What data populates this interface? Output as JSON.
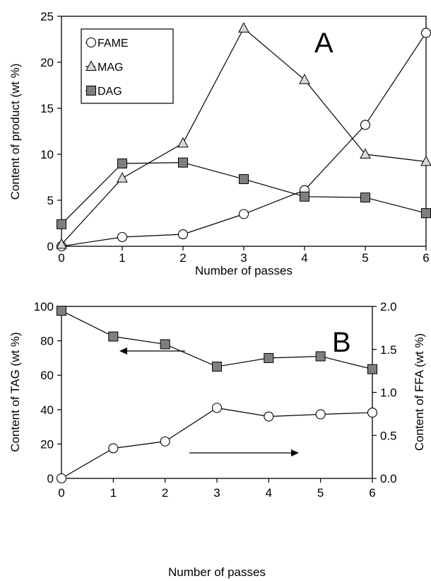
{
  "chart_data": [
    {
      "type": "line",
      "panel_label": "A",
      "xlabel": "Number of passes",
      "ylabel": "Content of product (wt %)",
      "x": [
        0,
        1,
        2,
        3,
        4,
        5,
        6
      ],
      "xlim": [
        0,
        6
      ],
      "ylim": [
        0,
        25
      ],
      "xticks": [
        "0",
        "1",
        "2",
        "3",
        "4",
        "5",
        "6"
      ],
      "yticks": [
        "0",
        "5",
        "10",
        "15",
        "20",
        "25"
      ],
      "grid": false,
      "legend_position": "top-left",
      "series": [
        {
          "name": "FAME",
          "marker": "circle-open",
          "values": [
            0.0,
            1.0,
            1.3,
            3.5,
            6.1,
            13.2,
            23.2
          ]
        },
        {
          "name": "MAG",
          "marker": "triangle-gray",
          "values": [
            0.2,
            7.4,
            11.2,
            23.7,
            18.1,
            10.0,
            9.2
          ]
        },
        {
          "name": "DAG",
          "marker": "square-gray",
          "values": [
            2.4,
            9.0,
            9.1,
            7.3,
            5.4,
            5.3,
            3.6
          ]
        }
      ]
    },
    {
      "type": "line",
      "panel_label": "B",
      "xlabel": "Number of passes",
      "ylabel": "Content of TAG (wt %)",
      "y2label": "Content of FFA (wt %)",
      "x": [
        0,
        1,
        2,
        3,
        4,
        5,
        6
      ],
      "xlim": [
        0,
        6
      ],
      "ylim": [
        0,
        100
      ],
      "y2lim": [
        0,
        2.0
      ],
      "xticks": [
        "0",
        "1",
        "2",
        "3",
        "4",
        "5",
        "6"
      ],
      "yticks": [
        "0",
        "20",
        "40",
        "60",
        "80",
        "100"
      ],
      "y2ticks": [
        "0.0",
        "0.5",
        "1.0",
        "1.5",
        "2.0"
      ],
      "grid": false,
      "series": [
        {
          "marker": "square-gray",
          "axis": "left",
          "values": [
            97.5,
            82.5,
            78.0,
            65.0,
            70.0,
            71.0,
            63.5
          ]
        },
        {
          "marker": "circle-open",
          "axis": "right",
          "values": [
            0.0,
            0.35,
            0.43,
            0.82,
            0.72,
            0.745,
            0.765
          ]
        }
      ]
    }
  ]
}
